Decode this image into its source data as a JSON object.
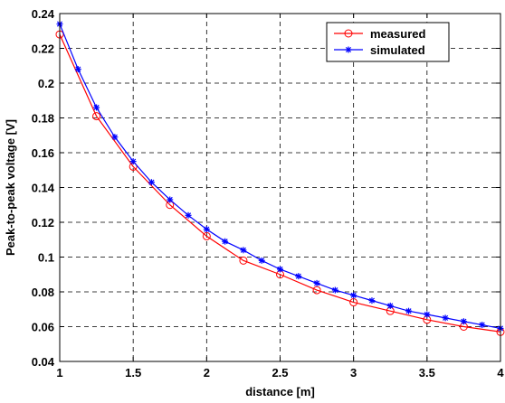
{
  "chart_data": {
    "type": "line",
    "xlabel": "distance [m]",
    "ylabel": "Peak-to-peak voltage  [V]",
    "xlim": [
      1,
      4
    ],
    "ylim": [
      0.04,
      0.24
    ],
    "x_ticks": [
      "1",
      "1.5",
      "2",
      "2.5",
      "3",
      "3.5",
      "4"
    ],
    "y_ticks": [
      "0.04",
      "0.06",
      "0.08",
      "0.1",
      "0.12",
      "0.14",
      "0.16",
      "0.18",
      "0.2",
      "0.22",
      "0.24"
    ],
    "grid": true,
    "legend_position": "top-right",
    "series": [
      {
        "name": "measured",
        "color": "#ff0000",
        "marker": "circle",
        "x": [
          1,
          1.25,
          1.5,
          1.75,
          2,
          2.25,
          2.5,
          2.75,
          3,
          3.25,
          3.5,
          3.75,
          4
        ],
        "y": [
          0.228,
          0.181,
          0.152,
          0.13,
          0.112,
          0.098,
          0.09,
          0.081,
          0.074,
          0.069,
          0.064,
          0.06,
          0.057
        ]
      },
      {
        "name": "simulated",
        "color": "#0000ff",
        "marker": "star",
        "x": [
          1,
          1.125,
          1.25,
          1.375,
          1.5,
          1.625,
          1.75,
          1.875,
          2,
          2.125,
          2.25,
          2.375,
          2.5,
          2.625,
          2.75,
          2.875,
          3,
          3.125,
          3.25,
          3.375,
          3.5,
          3.625,
          3.75,
          3.875,
          4
        ],
        "y": [
          0.234,
          0.208,
          0.186,
          0.169,
          0.155,
          0.143,
          0.133,
          0.124,
          0.116,
          0.109,
          0.104,
          0.098,
          0.093,
          0.089,
          0.085,
          0.081,
          0.078,
          0.075,
          0.072,
          0.069,
          0.067,
          0.065,
          0.063,
          0.061,
          0.059
        ]
      }
    ]
  }
}
